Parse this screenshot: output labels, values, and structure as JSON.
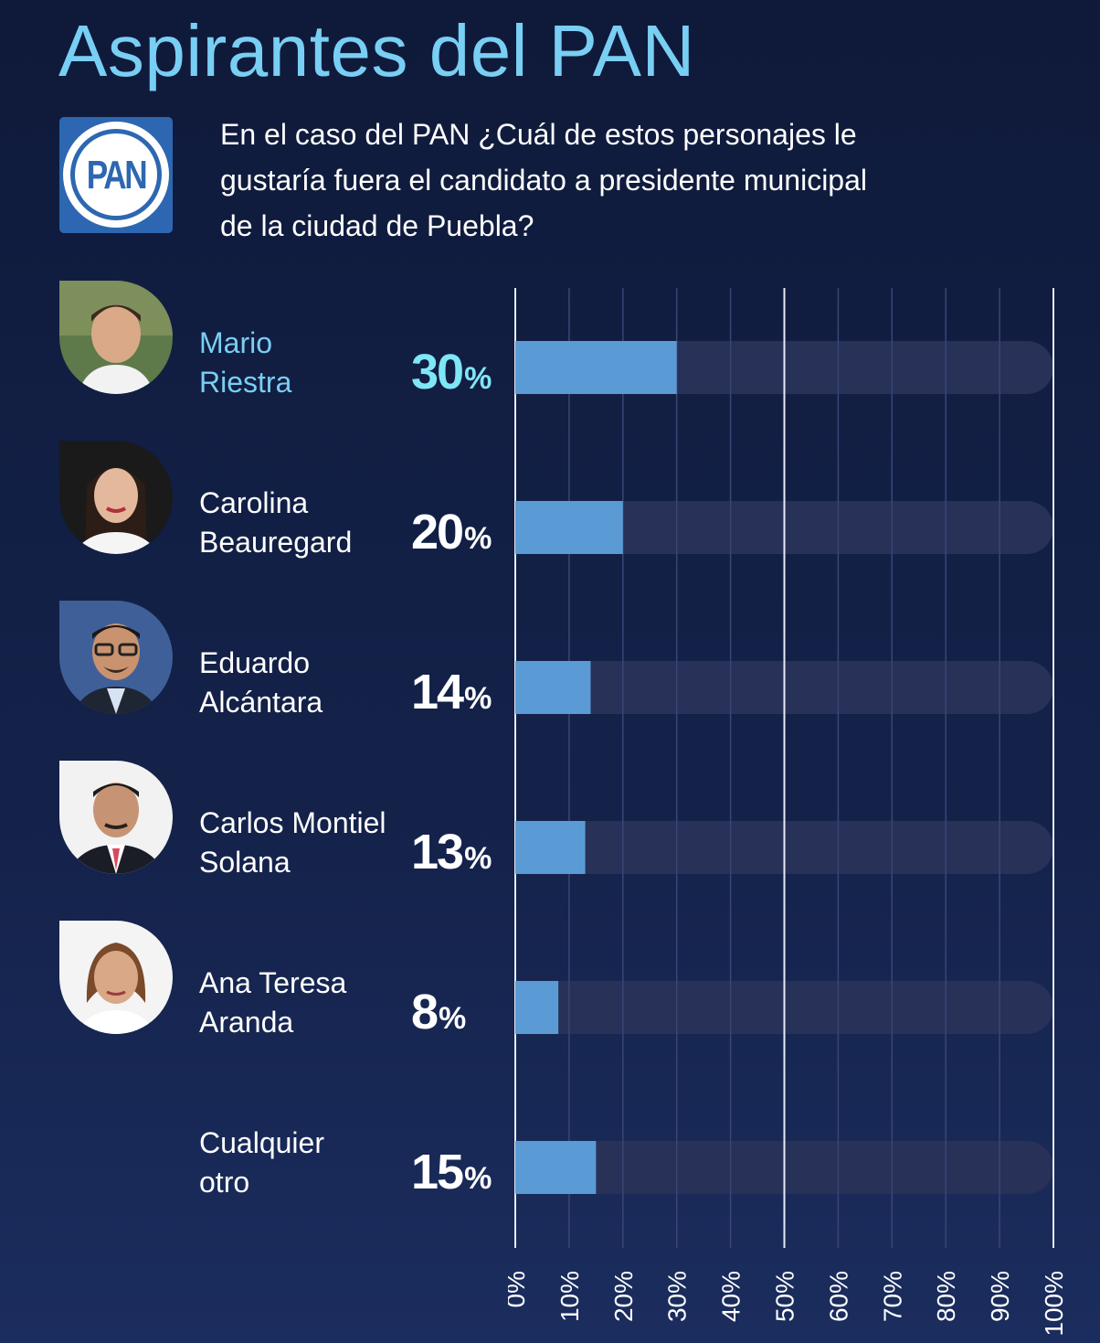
{
  "title": "Aspirantes del PAN",
  "logo_text": "PAN",
  "question": "En el caso del PAN ¿Cuál de estos personajes le gustaría fuera el candidato a presidente municipal de la ciudad de Puebla?",
  "candidates": [
    {
      "line1": "Mario",
      "line2": "Riestra",
      "pct": "30",
      "highlight": true,
      "avatar": "man-portrait"
    },
    {
      "line1": "Carolina",
      "line2": "Beauregard",
      "pct": "20",
      "highlight": false,
      "avatar": "woman-portrait"
    },
    {
      "line1": "Eduardo",
      "line2": "Alcántara",
      "pct": "14",
      "highlight": false,
      "avatar": "man-glasses-portrait"
    },
    {
      "line1": "Carlos Montiel",
      "line2": "Solana",
      "pct": "13",
      "highlight": false,
      "avatar": "man-suit-portrait"
    },
    {
      "line1": "Ana Teresa",
      "line2": "Aranda",
      "pct": "8",
      "highlight": false,
      "avatar": "woman-portrait"
    },
    {
      "line1": "Cualquier",
      "line2": "otro",
      "pct": "15",
      "highlight": false,
      "avatar": ""
    }
  ],
  "percent_symbol": "%",
  "colors": {
    "title": "#79cff3",
    "bar_fill": "#5b9bd5",
    "bar_track": "#283158",
    "highlight_pct": "#7fe6f6",
    "logo_blue": "#2d67b1"
  },
  "chart_data": {
    "type": "bar",
    "orientation": "horizontal",
    "categories": [
      "Mario Riestra",
      "Carolina Beauregard",
      "Eduardo Alcántara",
      "Carlos Montiel Solana",
      "Ana Teresa Aranda",
      "Cualquier otro"
    ],
    "values": [
      30,
      20,
      14,
      13,
      8,
      15
    ],
    "xlim": [
      0,
      100
    ],
    "x_ticks": [
      0,
      10,
      20,
      30,
      40,
      50,
      60,
      70,
      80,
      90,
      100
    ],
    "x_tick_labels": [
      "0%",
      "10%",
      "20%",
      "30%",
      "40%",
      "50%",
      "60%",
      "70%",
      "80%",
      "90%",
      "100%"
    ],
    "grid": true,
    "legend": "none"
  }
}
